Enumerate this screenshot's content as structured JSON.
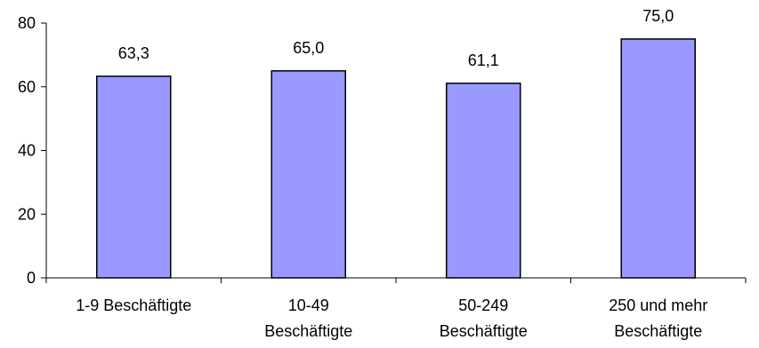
{
  "chart_data": {
    "type": "bar",
    "title": "",
    "xlabel": "",
    "ylabel": "",
    "categories": [
      [
        "1-9 Beschäftigte"
      ],
      [
        "10-49",
        "Beschäftigte"
      ],
      [
        "50-249",
        "Beschäftigte"
      ],
      [
        "250 und mehr",
        "Beschäftigte"
      ]
    ],
    "values": [
      63.3,
      65.0,
      61.1,
      75.0
    ],
    "value_labels": [
      "63,3",
      "65,0",
      "61,1",
      "75,0"
    ],
    "ylim": [
      0,
      80
    ],
    "yticks": [
      0,
      20,
      40,
      60,
      80
    ],
    "grid": false,
    "legend": "none",
    "colors": {
      "bar_fill": "#9999ff",
      "bar_stroke": "#000000",
      "axis": "#000000"
    }
  }
}
